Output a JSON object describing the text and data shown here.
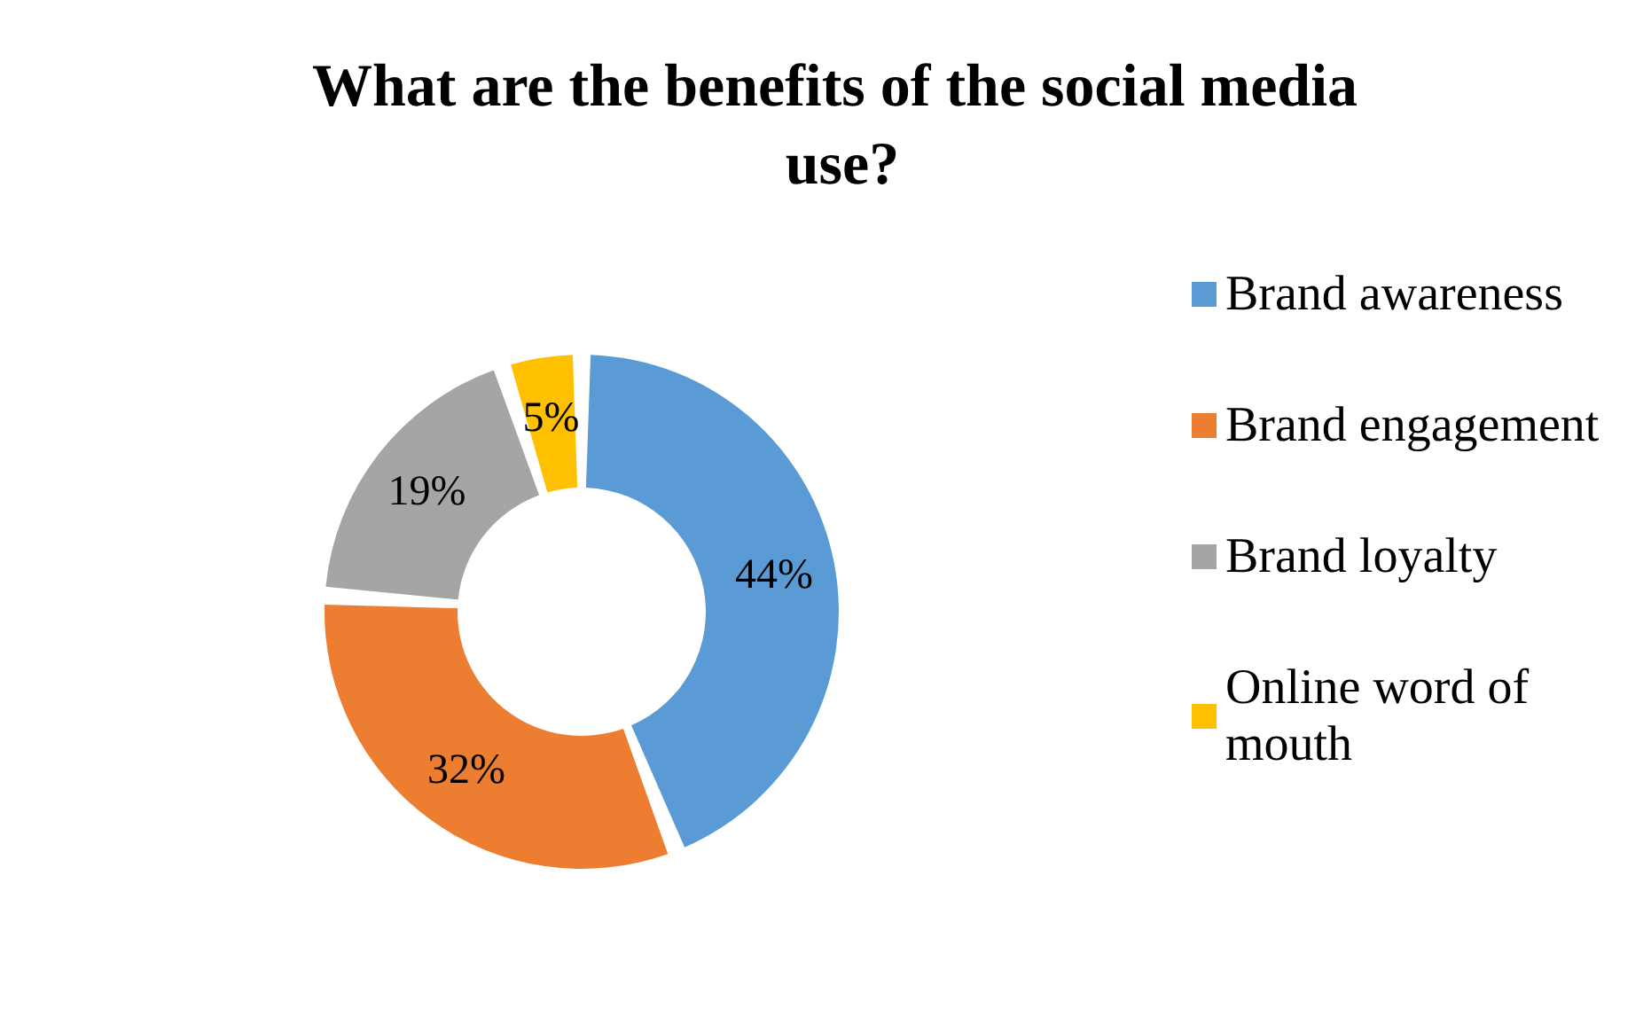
{
  "chart_data": {
    "type": "donut",
    "title": "What are the benefits of the social media use?",
    "categories": [
      "Brand awareness",
      "Brand engagement",
      "Brand loyalty",
      "Online word of mouth"
    ],
    "values": [
      44,
      32,
      19,
      5
    ],
    "colors": [
      "#5b9bd5",
      "#ed7d31",
      "#a5a5a5",
      "#ffc000"
    ],
    "value_labels": [
      "44%",
      "32%",
      "19%",
      "5%"
    ],
    "legend": "right"
  }
}
